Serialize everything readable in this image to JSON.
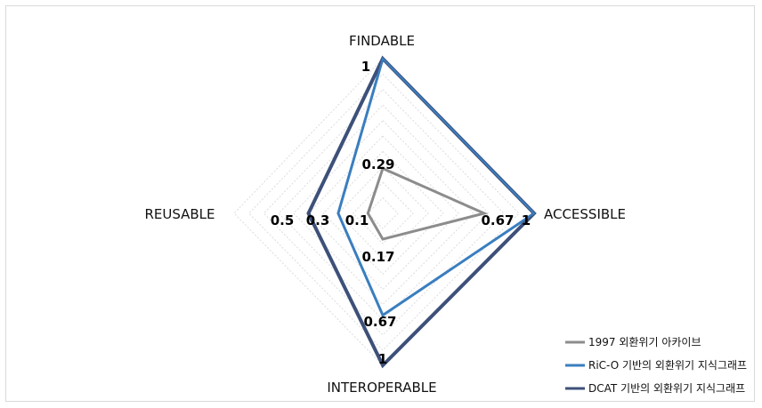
{
  "chart_data": {
    "type": "radar",
    "axes": [
      "FINDABLE",
      "ACCESSIBLE",
      "INTEROPERABLE",
      "REUSABLE"
    ],
    "range": [
      0,
      1
    ],
    "grid_levels": 10,
    "grid": true,
    "legend_position": "bottom-right",
    "series": [
      {
        "name": "1997 외환위기 아카이브",
        "values": [
          0.29,
          0.67,
          0.17,
          0.1
        ],
        "labels": [
          "0.29",
          "0.67",
          "0.17",
          "0.1"
        ],
        "color": "#8c8c8c"
      },
      {
        "name": "RiC-O 기반의 외환위기 지식그래프",
        "values": [
          1,
          1,
          0.67,
          0.3
        ],
        "labels": [
          "",
          "",
          "0.67",
          "0.3"
        ],
        "color": "#3a7ebf"
      },
      {
        "name": "DCAT 기반의 외환위기 지식그래프",
        "values": [
          1,
          1,
          1,
          0.5
        ],
        "labels": [
          "1",
          "1",
          "1",
          "0.5"
        ],
        "color": "#3d5079"
      }
    ]
  }
}
